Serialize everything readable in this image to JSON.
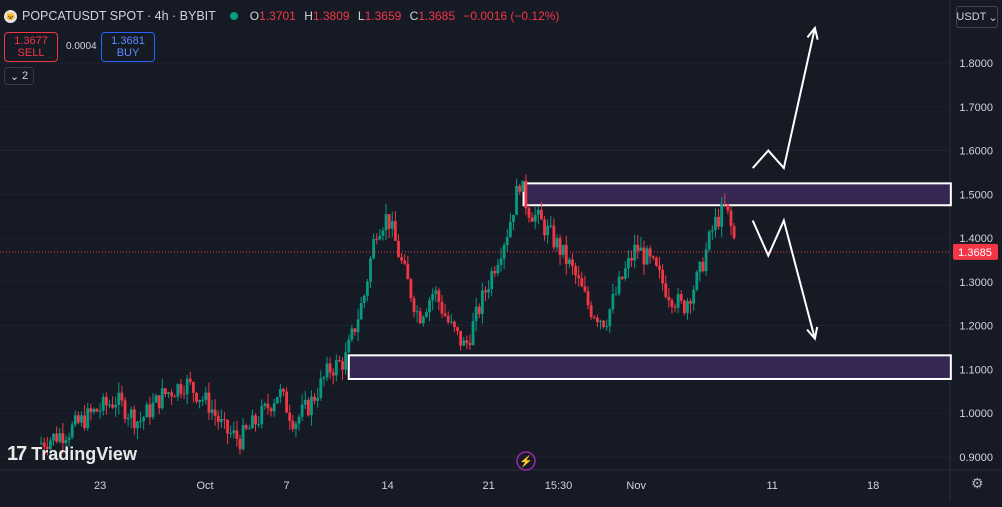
{
  "header": {
    "symbol": "POPCATUSDT SPOT · 4h · BYBIT",
    "o_label": "O",
    "o_value": "1.3701",
    "h_label": "H",
    "h_value": "1.3809",
    "l_label": "L",
    "l_value": "1.3659",
    "c_label": "C",
    "c_value": "1.3685",
    "change": "−0.0016 (−0.12%)"
  },
  "trade": {
    "sell_price": "1.3677",
    "sell_label": "SELL",
    "spread": "0.0004",
    "buy_price": "1.3681",
    "buy_label": "BUY"
  },
  "indicators_count": "2",
  "currency": "USDT",
  "watermark": "TradingView",
  "colors": {
    "background": "#161a25",
    "up": "#089981",
    "down": "#f23645",
    "zone_fill": "#3b2a5a",
    "zone_border": "#ffffff",
    "arrow": "#ffffff"
  },
  "chart_data": {
    "type": "candlestick",
    "timeframe": "4h",
    "ylim": [
      0.87,
      1.88
    ],
    "y_ticks": [
      "1.8000",
      "1.7000",
      "1.6000",
      "1.5000",
      "1.4000",
      "1.3000",
      "1.2000",
      "1.1000",
      "1.0000",
      "0.9000"
    ],
    "y_tick_values": [
      1.8,
      1.7,
      1.6,
      1.5,
      1.4,
      1.3,
      1.2,
      1.1,
      1.0,
      0.9
    ],
    "x_ticks": [
      "23",
      "Oct",
      "7",
      "14",
      "21",
      "15:30",
      "Nov",
      "11",
      "18"
    ],
    "current_price": 1.3685,
    "current_price_label": "1.3685",
    "price_path": [
      [
        0,
        0.93
      ],
      [
        8,
        0.96
      ],
      [
        14,
        1.0
      ],
      [
        20,
        1.03
      ],
      [
        26,
        0.98
      ],
      [
        32,
        1.04
      ],
      [
        38,
        1.07
      ],
      [
        44,
        1.02
      ],
      [
        48,
        0.96
      ],
      [
        52,
        0.94
      ],
      [
        58,
        1.0
      ],
      [
        62,
        1.05
      ],
      [
        66,
        0.98
      ],
      [
        70,
        1.02
      ],
      [
        75,
        1.1
      ],
      [
        79,
        1.12
      ],
      [
        84,
        1.27
      ],
      [
        87,
        1.42
      ],
      [
        90,
        1.45
      ],
      [
        94,
        1.33
      ],
      [
        98,
        1.22
      ],
      [
        102,
        1.28
      ],
      [
        106,
        1.2
      ],
      [
        110,
        1.15
      ],
      [
        114,
        1.25
      ],
      [
        118,
        1.35
      ],
      [
        121,
        1.42
      ],
      [
        124,
        1.53
      ],
      [
        126,
        1.47
      ],
      [
        130,
        1.43
      ],
      [
        134,
        1.38
      ],
      [
        138,
        1.32
      ],
      [
        142,
        1.24
      ],
      [
        146,
        1.21
      ],
      [
        150,
        1.3
      ],
      [
        154,
        1.38
      ],
      [
        158,
        1.34
      ],
      [
        162,
        1.28
      ],
      [
        166,
        1.24
      ],
      [
        170,
        1.31
      ],
      [
        174,
        1.43
      ],
      [
        177,
        1.47
      ],
      [
        180,
        1.37
      ]
    ],
    "zones": [
      {
        "y_low": 1.475,
        "y_high": 1.525,
        "x_start": 125,
        "x_end": 235
      },
      {
        "y_low": 1.078,
        "y_high": 1.132,
        "x_start": 80,
        "x_end": 235
      }
    ],
    "projections": [
      [
        [
          184,
          1.56
        ],
        [
          188,
          1.6
        ],
        [
          192,
          1.56
        ],
        [
          200,
          1.88
        ]
      ],
      [
        [
          184,
          1.44
        ],
        [
          188,
          1.36
        ],
        [
          192,
          1.44
        ],
        [
          200,
          1.17
        ]
      ]
    ],
    "x_ticks_pos": [
      16,
      43,
      64,
      90,
      116,
      134,
      154,
      189,
      215
    ],
    "x_domain": [
      0,
      225
    ]
  }
}
